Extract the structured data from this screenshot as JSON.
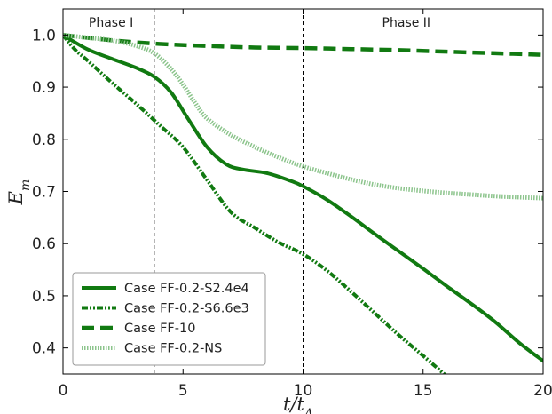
{
  "chart_data": {
    "type": "line",
    "title": "",
    "xlabel": "t/t_A",
    "xlabel_main": "t/t",
    "xlabel_sub": "A",
    "ylabel": "E_m",
    "ylabel_main": "E",
    "ylabel_sub": "m",
    "xlim": [
      0,
      20
    ],
    "ylim": [
      0.35,
      1.05
    ],
    "xticks": [
      0,
      5,
      10,
      15,
      20
    ],
    "xtick_labels": [
      "0",
      "5",
      "10",
      "15",
      "20"
    ],
    "yticks": [
      0.4,
      0.5,
      0.6,
      0.7,
      0.8,
      0.9,
      1.0
    ],
    "ytick_labels": [
      "0.4",
      "0.5",
      "0.6",
      "0.7",
      "0.8",
      "0.9",
      "1.0"
    ],
    "grid": false,
    "legend_position": "bottom-left",
    "phase_lines": [
      3.8,
      10
    ],
    "phase_labels": [
      {
        "text": "Phase I",
        "x": 2.0
      },
      {
        "text": "Phase II",
        "x": 14.3
      }
    ],
    "series": [
      {
        "name": "Case FF-0.2-S2.4e4",
        "style": "solid",
        "color": "#117a11",
        "x": [
          0,
          1,
          2,
          3,
          3.8,
          4.5,
          5.2,
          6,
          6.8,
          7.5,
          8.5,
          9.5,
          10,
          11,
          12,
          13,
          14,
          15,
          16,
          17,
          18,
          19,
          20
        ],
        "y": [
          1.0,
          0.973,
          0.955,
          0.938,
          0.92,
          0.89,
          0.84,
          0.785,
          0.752,
          0.742,
          0.735,
          0.72,
          0.71,
          0.684,
          0.652,
          0.618,
          0.585,
          0.552,
          0.518,
          0.485,
          0.45,
          0.41,
          0.375
        ]
      },
      {
        "name": "Case FF-0.2-S6.6e3",
        "style": "dashdot",
        "color": "#117a11",
        "x": [
          0,
          0.5,
          1,
          2,
          3,
          4,
          5,
          6,
          7,
          8,
          9,
          10,
          11,
          12,
          13,
          14,
          15,
          16
        ],
        "y": [
          1.0,
          0.972,
          0.952,
          0.91,
          0.87,
          0.828,
          0.785,
          0.722,
          0.66,
          0.63,
          0.602,
          0.58,
          0.548,
          0.508,
          0.466,
          0.424,
          0.385,
          0.345
        ]
      },
      {
        "name": "Case FF-10",
        "style": "dashed",
        "color": "#117a11",
        "x": [
          0,
          2,
          4,
          6,
          8,
          10,
          12,
          14,
          16,
          18,
          20
        ],
        "y": [
          1.0,
          0.99,
          0.983,
          0.979,
          0.976,
          0.975,
          0.973,
          0.971,
          0.968,
          0.965,
          0.962
        ]
      },
      {
        "name": "Case FF-0.2-NS",
        "style": "dotted",
        "color": "#8cc48c",
        "x": [
          0,
          1,
          2,
          3,
          3.8,
          4.5,
          5,
          5.5,
          6,
          7,
          8,
          9,
          10,
          11,
          12,
          13,
          14,
          15,
          16,
          17,
          18,
          19,
          20
        ],
        "y": [
          1.0,
          0.995,
          0.99,
          0.98,
          0.965,
          0.935,
          0.905,
          0.87,
          0.84,
          0.808,
          0.785,
          0.765,
          0.748,
          0.735,
          0.723,
          0.713,
          0.706,
          0.701,
          0.697,
          0.694,
          0.691,
          0.689,
          0.687
        ]
      }
    ]
  }
}
